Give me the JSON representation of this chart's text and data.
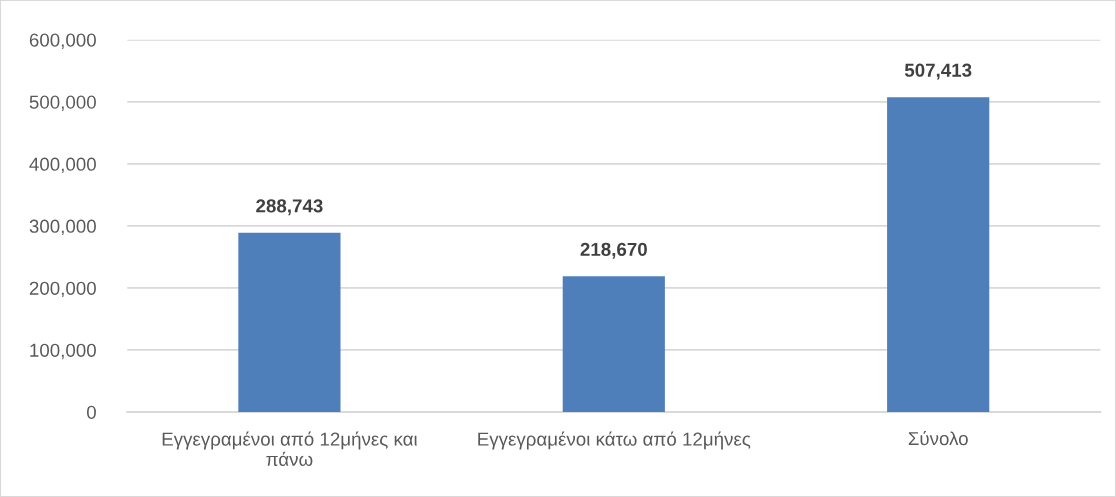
{
  "chart_data": {
    "type": "bar",
    "categories": [
      "Εγγεγραμένοι από 12μήνες και πάνω",
      "Εγγεγραμένοι κάτω από 12μήνες",
      "Σύνολο"
    ],
    "values": [
      288743,
      218670,
      507413
    ],
    "value_labels": [
      "288,743",
      "218,670",
      "507,413"
    ],
    "color": "#4e7fbb",
    "ylim": [
      0,
      600000
    ],
    "yticks": [
      0,
      {
        "value": 100000,
        "label": "100,000"
      },
      {
        "value": 200000,
        "label": "200,000"
      },
      {
        "value": 300000,
        "label": "300,000"
      },
      {
        "value": 400000,
        "label": "400,000"
      },
      {
        "value": 500000,
        "label": "500,000"
      },
      {
        "value": 600000,
        "label": "600,000"
      }
    ],
    "grid": "y"
  }
}
